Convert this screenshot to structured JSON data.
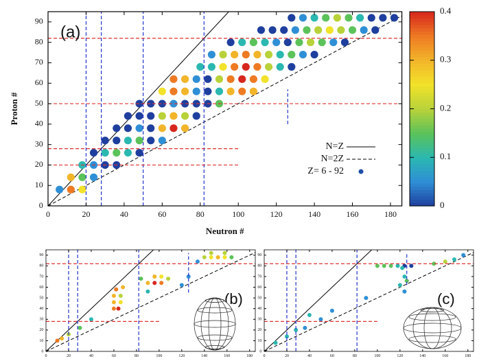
{
  "chart_data": [
    {
      "type": "scatter",
      "label": "(a)",
      "xlabel": "Neutron #",
      "ylabel": "Proton #",
      "xlim": [
        0,
        186
      ],
      "ylim": [
        0,
        95
      ],
      "xticks": [
        0,
        20,
        40,
        60,
        80,
        100,
        120,
        140,
        160,
        180
      ],
      "yticks": [
        0,
        10,
        20,
        30,
        40,
        50,
        60,
        70,
        80,
        90
      ],
      "vline_color": "#2233cc",
      "hline_color": "#e03030",
      "vlines": [
        {
          "value": 20
        },
        {
          "value": 28
        },
        {
          "value": 50
        },
        {
          "value": 82
        },
        {
          "value": 126,
          "span": [
            40,
            57
          ]
        }
      ],
      "hlines": [
        {
          "value": 20,
          "span": [
            0,
            100
          ]
        },
        {
          "value": 28,
          "span": [
            0,
            100
          ]
        },
        {
          "value": 50
        },
        {
          "value": 82
        }
      ],
      "ref_lines": [
        {
          "name": "N=Z",
          "ratio": 1,
          "dashed": false
        },
        {
          "name": "N=2Z",
          "ratio": 2,
          "dashed": true
        }
      ],
      "legend": "lower right",
      "colorbar": {
        "lim": [
          0,
          0.4
        ],
        "ticks": [
          0,
          0.1,
          0.2,
          0.3,
          0.4
        ],
        "colormap": [
          "#1f3f9e",
          "#2f8fd6",
          "#2bb8b0",
          "#5cc25a",
          "#b8d23a",
          "#f2e22a",
          "#f2b52a",
          "#ee7a23",
          "#d7261e"
        ]
      },
      "series": [
        {
          "name": "Z= 6 - 92",
          "color": "#1f4fa8",
          "x": [
            6,
            12,
            18,
            12,
            18,
            24,
            18,
            24,
            30,
            36,
            24,
            30,
            36,
            42,
            48,
            30,
            36,
            42,
            48,
            54,
            60,
            36,
            42,
            48,
            54,
            60,
            66,
            72,
            42,
            48,
            54,
            60,
            66,
            72,
            78,
            48,
            54,
            60,
            66,
            72,
            78,
            84,
            90,
            60,
            66,
            72,
            78,
            84,
            90,
            96,
            102,
            108,
            66,
            72,
            78,
            84,
            90,
            96,
            102,
            108,
            114,
            80,
            86,
            92,
            98,
            104,
            110,
            116,
            122,
            128,
            86,
            92,
            98,
            104,
            110,
            116,
            122,
            128,
            134,
            140,
            96,
            102,
            108,
            114,
            120,
            126,
            132,
            138,
            144,
            150,
            156,
            112,
            118,
            124,
            130,
            136,
            142,
            148,
            154,
            160,
            166,
            172,
            128,
            134,
            140,
            146,
            152,
            158,
            164,
            170,
            176,
            182
          ],
          "values": [
            8,
            8,
            8,
            14,
            14,
            14,
            20,
            20,
            20,
            20,
            26,
            26,
            26,
            26,
            26,
            32,
            32,
            32,
            32,
            32,
            32,
            38,
            38,
            38,
            38,
            38,
            38,
            38,
            44,
            44,
            44,
            44,
            44,
            44,
            44,
            50,
            50,
            50,
            50,
            50,
            50,
            50,
            50,
            56,
            56,
            56,
            56,
            56,
            56,
            56,
            56,
            56,
            62,
            62,
            62,
            62,
            62,
            62,
            62,
            62,
            62,
            68,
            68,
            68,
            68,
            68,
            68,
            68,
            68,
            68,
            74,
            74,
            74,
            74,
            74,
            74,
            74,
            74,
            74,
            74,
            80,
            80,
            80,
            80,
            80,
            80,
            80,
            80,
            80,
            80,
            80,
            86,
            86,
            86,
            86,
            86,
            86,
            86,
            86,
            86,
            86,
            86,
            92,
            92,
            92,
            92,
            92,
            92,
            92,
            92,
            92,
            92
          ],
          "c": [
            0.05,
            0.35,
            0.25,
            0.3,
            0.15,
            0.05,
            0.1,
            0.05,
            0,
            0,
            0,
            0.1,
            0.15,
            0.1,
            0,
            0,
            0,
            0.1,
            0.15,
            0,
            0.05,
            0,
            0,
            0.05,
            0,
            0.3,
            0.4,
            0.3,
            0,
            0,
            0,
            0.2,
            0.3,
            0.2,
            0,
            0,
            0,
            0,
            0.05,
            0,
            0,
            0,
            0.15,
            0.25,
            0.35,
            0.3,
            0.05,
            0,
            0.1,
            0.3,
            0.35,
            0.3,
            0.35,
            0.3,
            0.05,
            0,
            0.2,
            0.35,
            0.4,
            0.35,
            0.25,
            0.1,
            0.1,
            0.25,
            0.35,
            0.4,
            0.35,
            0.2,
            0.1,
            0,
            0.05,
            0.2,
            0.3,
            0.35,
            0.3,
            0.2,
            0.1,
            0.15,
            0.05,
            0,
            0,
            0.1,
            0.15,
            0.1,
            0.05,
            0,
            0.15,
            0.2,
            0.15,
            0.05,
            0,
            0,
            0,
            0,
            0.05,
            0.15,
            0.2,
            0.25,
            0.2,
            0.15,
            0.05,
            0,
            0,
            0.05,
            0.1,
            0.15,
            0.2,
            0.15,
            0.1,
            0,
            0,
            0
          ]
        }
      ]
    },
    {
      "type": "scatter",
      "label": "(b)",
      "xlim": [
        0,
        185
      ],
      "ylim": [
        0,
        95
      ],
      "xticks": [
        0,
        20,
        40,
        60,
        80,
        100,
        120,
        140,
        160,
        180
      ],
      "yticks": [
        0,
        10,
        20,
        30,
        40,
        50,
        60,
        70,
        80,
        90
      ],
      "vline_color": "#2233cc",
      "hline_color": "#e03030",
      "vlines": [
        {
          "value": 20
        },
        {
          "value": 28
        },
        {
          "value": 82
        },
        {
          "value": 126,
          "span": [
            55,
            92
          ]
        }
      ],
      "hlines": [
        {
          "value": 28,
          "span": [
            0,
            100
          ]
        },
        {
          "value": 82
        }
      ],
      "ref_lines": [
        {
          "ratio": 1,
          "dashed": false
        },
        {
          "ratio": 2,
          "dashed": true
        }
      ],
      "series": [
        {
          "x": [
            10,
            14,
            20,
            30,
            40,
            60,
            64,
            60,
            66,
            60,
            66,
            62,
            68,
            90,
            96,
            102,
            96,
            102,
            108,
            84,
            90,
            120,
            126,
            140,
            146,
            152,
            158,
            164,
            146,
            158,
            134
          ],
          "values": [
            10,
            12,
            16,
            22,
            30,
            40,
            40,
            46,
            46,
            52,
            52,
            58,
            60,
            64,
            64,
            64,
            70,
            70,
            68,
            68,
            56,
            62,
            70,
            88,
            88,
            88,
            88,
            88,
            92,
            92,
            84
          ],
          "c": [
            0.35,
            0.3,
            0.2,
            0.15,
            0.1,
            0.35,
            0.4,
            0.3,
            0.25,
            0.3,
            0.2,
            0.35,
            0.3,
            0.3,
            0.4,
            0.35,
            0.3,
            0.25,
            0.2,
            0.15,
            0.1,
            0.05,
            0.05,
            0.2,
            0.25,
            0.3,
            0.25,
            0.15,
            0.2,
            0.2,
            0.05
          ]
        }
      ]
    },
    {
      "type": "scatter",
      "label": "(c)",
      "xlim": [
        0,
        185
      ],
      "ylim": [
        0,
        95
      ],
      "xticks": [
        0,
        20,
        40,
        60,
        80,
        100,
        120,
        140,
        160,
        180
      ],
      "yticks": [
        0,
        10,
        20,
        30,
        40,
        50,
        60,
        70,
        80,
        90
      ],
      "vline_color": "#2233cc",
      "hline_color": "#e03030",
      "vlines": [
        {
          "value": 20
        },
        {
          "value": 28
        },
        {
          "value": 82
        },
        {
          "value": 126,
          "span": [
            62,
            92
          ]
        }
      ],
      "hlines": [
        {
          "value": 28,
          "span": [
            0,
            100
          ]
        },
        {
          "value": 82
        }
      ],
      "ref_lines": [
        {
          "ratio": 1,
          "dashed": false
        },
        {
          "ratio": 2,
          "dashed": true
        }
      ],
      "series": [
        {
          "x": [
            10,
            20,
            28,
            36,
            40,
            50,
            60,
            90,
            100,
            106,
            112,
            118,
            124,
            130,
            122,
            124,
            126,
            120,
            124,
            150,
            160,
            168,
            176
          ],
          "values": [
            8,
            14,
            20,
            22,
            34,
            30,
            38,
            50,
            80,
            80,
            80,
            80,
            80,
            80,
            78,
            70,
            66,
            62,
            56,
            82,
            84,
            86,
            90
          ],
          "c": [
            0.1,
            0.1,
            0.1,
            0.05,
            0.1,
            0.05,
            0.05,
            0.05,
            0.15,
            0.15,
            0.15,
            0.1,
            0,
            0,
            0.1,
            0.1,
            0.15,
            0.1,
            0.05,
            0.15,
            0.2,
            0.1,
            0.05
          ]
        }
      ]
    }
  ]
}
